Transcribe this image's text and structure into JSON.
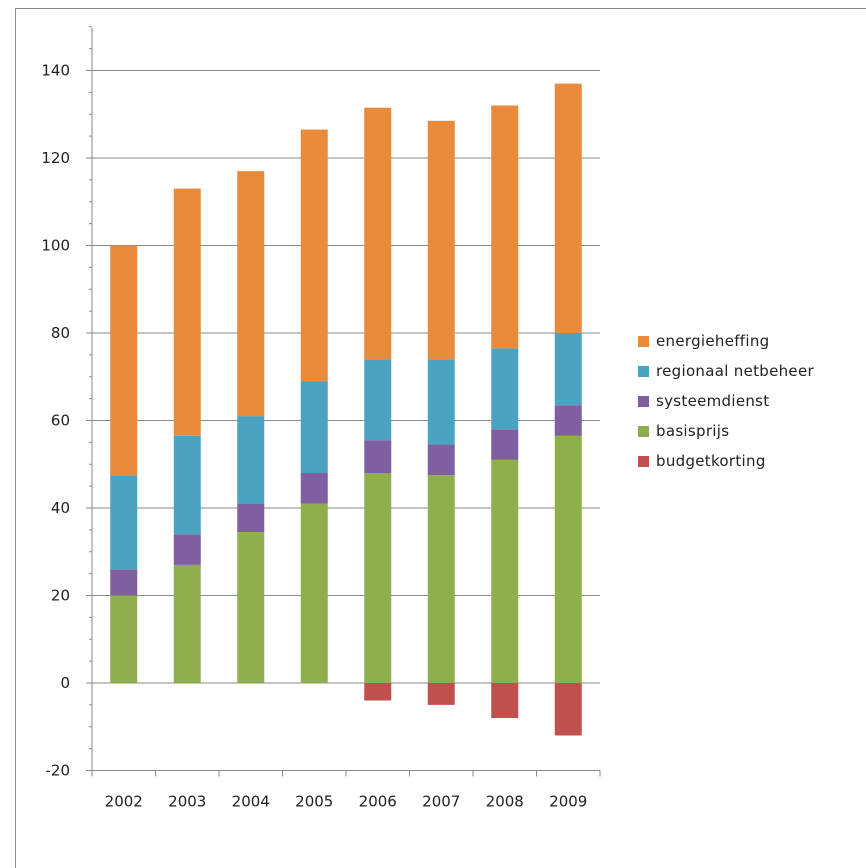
{
  "chart_data": {
    "type": "bar",
    "stacked": true,
    "categories": [
      "2002",
      "2003",
      "2004",
      "2005",
      "2006",
      "2007",
      "2008",
      "2009"
    ],
    "series": [
      {
        "name": "budgetkorting",
        "color": "#c0504d",
        "values": [
          0,
          0,
          0,
          0,
          -4,
          -5,
          -8,
          -12
        ]
      },
      {
        "name": "basisprijs",
        "color": "#8faf4f",
        "values": [
          20,
          27,
          34.5,
          41,
          48,
          47.5,
          51,
          56.5
        ]
      },
      {
        "name": "systeemdienst",
        "color": "#7f5fa0",
        "values": [
          6,
          7,
          6.5,
          7,
          7.5,
          7,
          7,
          7
        ]
      },
      {
        "name": "regionaal netbeheer",
        "color": "#4aa3c0",
        "values": [
          21.5,
          22.5,
          20,
          21,
          18.5,
          19.5,
          18.5,
          16.5
        ]
      },
      {
        "name": "energieheffing",
        "color": "#e98b3a",
        "values": [
          52.5,
          56.5,
          56,
          57.5,
          57.5,
          54.5,
          55.5,
          57
        ]
      }
    ],
    "legend_order": [
      "energieheffing",
      "regionaal netbeheer",
      "systeemdienst",
      "basisprijs",
      "budgetkorting"
    ],
    "yticks": [
      "-20",
      "0",
      "20",
      "40",
      "60",
      "80",
      "100",
      "120",
      "140"
    ],
    "ylim": [
      -20,
      150
    ],
    "grid": true,
    "legend_position": "right"
  }
}
